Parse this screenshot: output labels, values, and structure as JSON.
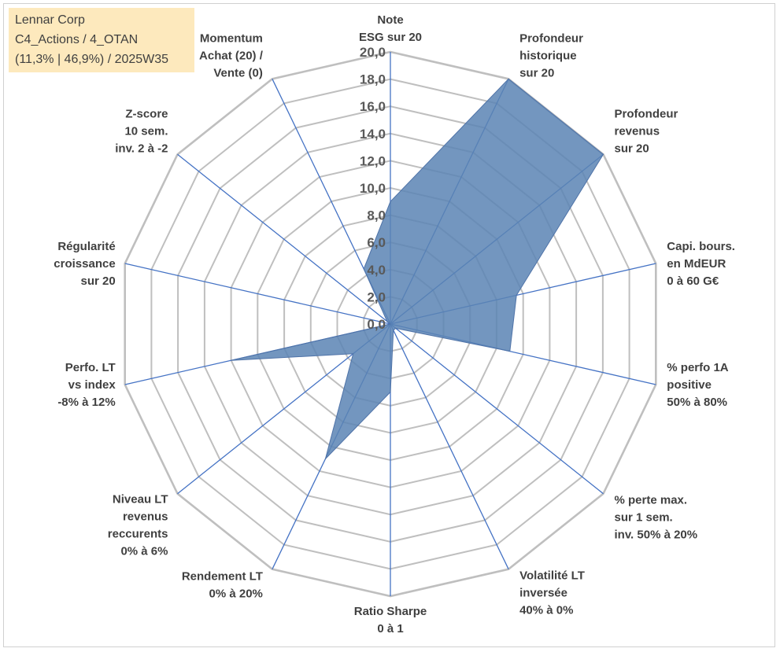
{
  "title_box": {
    "line1": "Lennar Corp",
    "line2": "C4_Actions / 4_OTAN",
    "line3": "(11,3% | 46,9%) / 2025W35"
  },
  "colors": {
    "grid": "#bfbfbf",
    "spoke": "#4472c4",
    "fill": "#5b84b4",
    "stroke": "#4f73a8"
  },
  "chart_data": {
    "type": "radar",
    "range": [
      0,
      20
    ],
    "ticks": [
      "0,0",
      "2,0",
      "4,0",
      "6,0",
      "8,0",
      "10,0",
      "12,0",
      "14,0",
      "16,0",
      "18,0",
      "20,0"
    ],
    "grid": true,
    "legend": "none",
    "axes": [
      [
        "Note",
        "ESG sur 20"
      ],
      [
        "Profondeur",
        "historique",
        "sur 20"
      ],
      [
        "Profondeur",
        "revenus",
        "sur 20"
      ],
      [
        "Capi. bours.",
        "en MdEUR",
        "0 à 60 G€"
      ],
      [
        "% perfo 1A",
        "positive",
        "50% à 80%"
      ],
      [
        "% perte max.",
        "sur 1 sem.",
        "inv. 50% à 20%"
      ],
      [
        "Volatilité LT",
        "inversée",
        "40% à 0%"
      ],
      [
        "Ratio Sharpe",
        "0 à 1"
      ],
      [
        "Rendement LT",
        "0% à 20%"
      ],
      [
        "Niveau LT",
        "revenus",
        "reccurents",
        "0% à 6%"
      ],
      [
        "Perfo. LT",
        "vs index",
        "-8% à 12%"
      ],
      [
        "Régularité",
        "croissance",
        "sur 20"
      ],
      [
        "Z-score",
        "10 sem.",
        "inv. 2 à -2"
      ],
      [
        "Momentum",
        "Achat (20) /",
        "Vente (0)"
      ]
    ],
    "values": [
      9.0,
      20.0,
      20.0,
      9.5,
      9.0,
      0.5,
      0.5,
      5.0,
      11.0,
      3.5,
      12.0,
      0.0,
      0.3,
      4.5
    ]
  }
}
